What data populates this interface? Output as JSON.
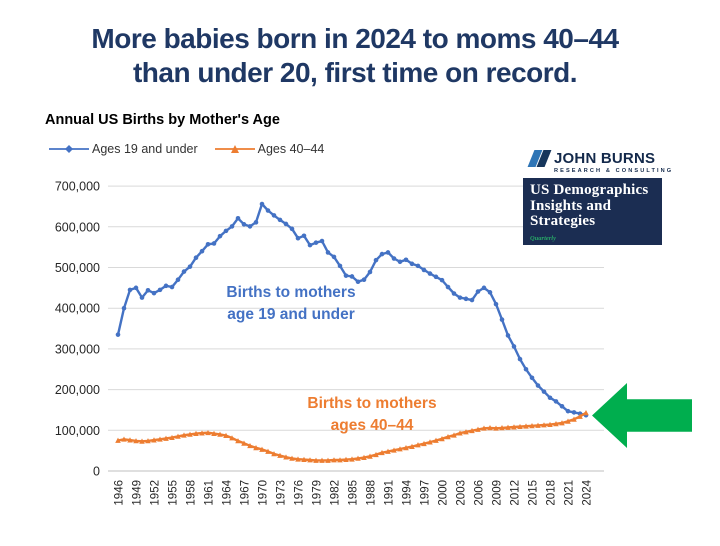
{
  "headline": {
    "line1": "More babies born in 2024 to moms 40–44",
    "line2": "than under 20, first time on record."
  },
  "chart": {
    "title": "Annual US Births by Mother's Age"
  },
  "annotations": {
    "blue_line1": "Births to mothers",
    "blue_line2": "age 19 and under",
    "orange_line1": "Births to mothers",
    "orange_line2": "ages 40–44"
  },
  "logo": {
    "name": "JOHN BURNS",
    "tagline": "RESEARCH & CONSULTING"
  },
  "report_badge": {
    "line1": "US Demographics",
    "line2": "Insights and",
    "line3": "Strategies",
    "frequency": "Quarterly"
  },
  "colors": {
    "headline_navy": "#1F3864",
    "series_blue": "#4472C4",
    "series_orange": "#ED7D31",
    "arrow_green": "#00AE4E",
    "badge_navy": "#1B2D52",
    "badge_quarterly_green": "#27A567",
    "logo_navy": "#13294B",
    "logo_bar_light": "#2E75B6",
    "logo_bar_dark": "#16365C",
    "gridline": "#D9D9D9",
    "axis_line": "#BFBFBF",
    "tick_text": "#262626"
  },
  "chart_data": {
    "type": "line",
    "title": "Annual US Births by Mother's Age",
    "xlabel": "",
    "ylabel": "",
    "ylim": [
      0,
      700000
    ],
    "y_ticks": [
      0,
      100000,
      200000,
      300000,
      400000,
      500000,
      600000,
      700000
    ],
    "grid": true,
    "legend_position": "top-left",
    "x_tick_labels": [
      "1946",
      "1949",
      "1952",
      "1955",
      "1958",
      "1961",
      "1964",
      "1967",
      "1970",
      "1973",
      "1976",
      "1979",
      "1982",
      "1985",
      "1988",
      "1991",
      "1994",
      "1997",
      "2000",
      "2003",
      "2006",
      "2009",
      "2012",
      "2015",
      "2018",
      "2021",
      "2024"
    ],
    "years": [
      1946,
      1947,
      1948,
      1949,
      1950,
      1951,
      1952,
      1953,
      1954,
      1955,
      1956,
      1957,
      1958,
      1959,
      1960,
      1961,
      1962,
      1963,
      1964,
      1965,
      1966,
      1967,
      1968,
      1969,
      1970,
      1971,
      1972,
      1973,
      1974,
      1975,
      1976,
      1977,
      1978,
      1979,
      1980,
      1981,
      1982,
      1983,
      1984,
      1985,
      1986,
      1987,
      1988,
      1989,
      1990,
      1991,
      1992,
      1993,
      1994,
      1995,
      1996,
      1997,
      1998,
      1999,
      2000,
      2001,
      2002,
      2003,
      2004,
      2005,
      2006,
      2007,
      2008,
      2009,
      2010,
      2011,
      2012,
      2013,
      2014,
      2015,
      2016,
      2017,
      2018,
      2019,
      2020,
      2021,
      2022,
      2023,
      2024
    ],
    "series": [
      {
        "name": "Ages 19 and under",
        "color": "#4472C4",
        "marker": "circle",
        "values": [
          335000,
          400000,
          445000,
          450000,
          426000,
          444000,
          437000,
          445000,
          455000,
          452000,
          470000,
          490000,
          502000,
          524000,
          540000,
          557000,
          559000,
          577000,
          590000,
          601000,
          621000,
          606000,
          601000,
          611000,
          656000,
          640000,
          628000,
          617000,
          607000,
          595000,
          572000,
          578000,
          555000,
          561000,
          565000,
          537000,
          526000,
          504000,
          480000,
          478000,
          465000,
          470000,
          489000,
          518000,
          533000,
          537000,
          522000,
          514000,
          519000,
          509000,
          504000,
          494000,
          485000,
          477000,
          469000,
          452000,
          436000,
          426000,
          423000,
          420000,
          441000,
          450000,
          439000,
          410000,
          372000,
          333000,
          306000,
          275000,
          250000,
          229000,
          210000,
          195000,
          180000,
          171000,
          159000,
          147000,
          144000,
          141000,
          137000
        ]
      },
      {
        "name": "Ages 40–44",
        "color": "#ED7D31",
        "marker": "triangle",
        "values": [
          75000,
          78000,
          76000,
          74000,
          73000,
          74000,
          76000,
          78000,
          80000,
          82000,
          85000,
          88000,
          90000,
          92000,
          93000,
          94000,
          92000,
          90000,
          87000,
          81000,
          74000,
          68000,
          62000,
          57000,
          53000,
          48000,
          42000,
          38000,
          34000,
          31000,
          29000,
          28000,
          27000,
          26000,
          26000,
          26000,
          27000,
          27000,
          28000,
          29000,
          31000,
          33000,
          36000,
          40000,
          45000,
          48000,
          51000,
          54000,
          57000,
          60000,
          64000,
          67000,
          71000,
          75000,
          79000,
          84000,
          88000,
          93000,
          96000,
          99000,
          102000,
          105000,
          106000,
          105000,
          106000,
          107000,
          108000,
          109000,
          110000,
          111000,
          112000,
          113000,
          114000,
          116000,
          118000,
          122000,
          127000,
          134000,
          143000
        ]
      }
    ]
  }
}
